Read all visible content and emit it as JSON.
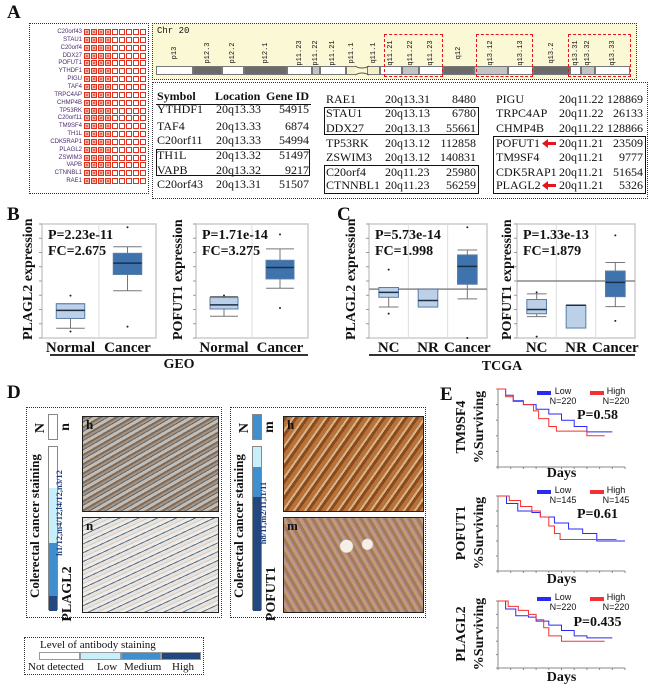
{
  "panel_labels": {
    "A": "A",
    "B": "B",
    "C": "C",
    "D": "D",
    "E": "E"
  },
  "heatmap": {
    "genes": [
      "C20orf43",
      "STAU1",
      "C20orf4",
      "DDX27",
      "POFUT1",
      "YTHDF1",
      "PIGU",
      "TAF4",
      "TRPC4AP",
      "CHMP4B",
      "TP53RK",
      "C20orf11",
      "TM9SF4",
      "TH1L",
      "CDK5RAP1",
      "PLAGL2",
      "ZSWIM3",
      "VAPB",
      "CTNNBL1",
      "RAE1"
    ],
    "columns": 9,
    "filled_columns": 4,
    "color": "#e0301e"
  },
  "chromosome": {
    "title": "Chr 20",
    "bands": [
      {
        "name": "p13",
        "stain": "white"
      },
      {
        "name": "p12.3",
        "stain": "dark"
      },
      {
        "name": "p12.2",
        "stain": "white"
      },
      {
        "name": "p12.1",
        "stain": "dark"
      },
      {
        "name": "p11.23",
        "stain": "white"
      },
      {
        "name": "p11.22",
        "stain": "gray"
      },
      {
        "name": "p11.21",
        "stain": "white"
      },
      {
        "name": "p11.1",
        "stain": "pale"
      },
      {
        "name": "q11.1",
        "stain": "pale"
      },
      {
        "name": "q11.21",
        "stain": "white"
      },
      {
        "name": "q11.22",
        "stain": "gray"
      },
      {
        "name": "q11.23",
        "stain": "white"
      },
      {
        "name": "q12",
        "stain": "dark"
      },
      {
        "name": "q13.12",
        "stain": "gray"
      },
      {
        "name": "q13.13",
        "stain": "white"
      },
      {
        "name": "q13.2",
        "stain": "dark"
      },
      {
        "name": "q13.31",
        "stain": "white"
      },
      {
        "name": "q13.32",
        "stain": "gray"
      },
      {
        "name": "q13.33",
        "stain": "white"
      }
    ],
    "highlighted_regions": [
      [
        "q11.21",
        "q11.23"
      ],
      [
        "q13.12",
        "q13.13"
      ],
      [
        "q13.31",
        "q13.33"
      ]
    ],
    "highlight_color": "#e8141c"
  },
  "gene_table": {
    "headers": [
      "Symbol",
      "Location",
      "Gene ID"
    ],
    "columns": [
      [
        [
          "YTHDF1",
          "20q13.33",
          "54915"
        ],
        [
          "TAF4",
          "20q13.33",
          "6874"
        ],
        [
          "C20orf11",
          "20q13.33",
          "54994"
        ],
        [
          "TH1L",
          "20q13.32",
          "51497"
        ],
        [
          "VAPB",
          "20q13.32",
          "9217"
        ],
        [
          "C20orf43",
          "20q13.31",
          "51507"
        ]
      ],
      [
        [
          "RAE1",
          "20q13.31",
          "8480"
        ],
        [
          "STAU1",
          "20q13.13",
          "6780"
        ],
        [
          "DDX27",
          "20q13.13",
          "55661"
        ],
        [
          "TP53RK",
          "20q13.12",
          "112858"
        ],
        [
          "ZSWIM3",
          "20q13.12",
          "140831"
        ],
        [
          "C20orf4",
          "20q11.23",
          "25980"
        ],
        [
          "CTNNBL1",
          "20q11.23",
          "56259"
        ]
      ],
      [
        [
          "PIGU",
          "20q11.22",
          "128869"
        ],
        [
          "TRPC4AP",
          "20q11.22",
          "26133"
        ],
        [
          "CHMP4B",
          "20q11.22",
          "128866"
        ],
        [
          "POFUT1",
          "20q11.21",
          "23509"
        ],
        [
          "TM9SF4",
          "20q11.21",
          "9777"
        ],
        [
          "CDK5RAP1",
          "20q11.21",
          "51654"
        ],
        [
          "PLAGL2",
          "20q11.21",
          "5326"
        ]
      ]
    ],
    "arrow_genes": [
      "POFUT1",
      "PLAGL2"
    ],
    "arrow_color": "#e8141c"
  },
  "chart_data": [
    {
      "type": "box",
      "panel": "B",
      "ylabel": "PLAGL2 expression",
      "stat": [
        "P=2.23e-11",
        "FC=2.675"
      ],
      "ylim": [
        0,
        3.5
      ],
      "groups": [
        {
          "name": "Normal",
          "whisker": [
            0.3,
            1.05
          ],
          "q1": 0.6,
          "median": 0.85,
          "q3": 1.05,
          "outliers": [
            1.3,
            0.2
          ],
          "color": "#bcd0e8"
        },
        {
          "name": "Cancer",
          "whisker": [
            1.45,
            2.8
          ],
          "q1": 1.95,
          "median": 2.3,
          "q3": 2.6,
          "outliers": [
            3.4,
            0.35
          ],
          "color": "#3f73ad"
        }
      ]
    },
    {
      "type": "box",
      "panel": "B",
      "ylabel": "POFUT1 expression",
      "stat": [
        "P=1.71e-14",
        "FC=3.275"
      ],
      "ylim": [
        0,
        5.5
      ],
      "groups": [
        {
          "name": "Normal",
          "whisker": [
            1.05,
            2.0
          ],
          "q1": 1.4,
          "median": 1.6,
          "q3": 1.95,
          "outliers": [
            2.05
          ],
          "color": "#bcd0e8"
        },
        {
          "name": "Cancer",
          "whisker": [
            2.4,
            4.3
          ],
          "q1": 2.85,
          "median": 3.4,
          "q3": 3.75,
          "outliers": [
            5.0,
            1.45
          ],
          "color": "#3f73ad"
        }
      ]
    },
    {
      "type": "box",
      "panel": "C",
      "ylabel": "PLAGL2 expression",
      "stat": [
        "P=5.73e-14",
        "FC=1.998"
      ],
      "ylim": [
        -1.5,
        2.0
      ],
      "refline": 0,
      "groups": [
        {
          "name": "NC",
          "whisker": [
            -0.55,
            0.05
          ],
          "q1": -0.25,
          "median": -0.1,
          "q3": 0.05,
          "outliers": [
            0.6,
            -0.75
          ],
          "color": "#bcd0e8"
        },
        {
          "name": "NR",
          "whisker": [
            -0.55,
            0
          ],
          "q1": -0.55,
          "median": -0.35,
          "q3": 0,
          "outliers": [],
          "color": "#bcd0e8"
        },
        {
          "name": "Cancer",
          "whisker": [
            -0.3,
            1.2
          ],
          "q1": 0.15,
          "median": 0.7,
          "q3": 1.05,
          "outliers": [
            1.9,
            -1.5
          ],
          "color": "#3f73ad"
        }
      ]
    },
    {
      "type": "box",
      "panel": "C",
      "ylabel": "POFUT1 expression",
      "stat": [
        "P=1.33e-13",
        "FC=1.879"
      ],
      "ylim": [
        -2.0,
        2.0
      ],
      "refline": 0,
      "groups": [
        {
          "name": "NC",
          "whisker": [
            -1.25,
            -0.45
          ],
          "q1": -1.15,
          "median": -1.0,
          "q3": -0.65,
          "outliers": [
            -0.4,
            -1.95
          ],
          "color": "#bcd0e8"
        },
        {
          "name": "NR",
          "whisker": [
            -1.65,
            -0.85
          ],
          "q1": -1.65,
          "median": -0.85,
          "q3": -0.85,
          "outliers": [],
          "color": "#bcd0e8"
        },
        {
          "name": "Cancer",
          "whisker": [
            -0.9,
            0.65
          ],
          "q1": -0.55,
          "median": -0.05,
          "q3": 0.35,
          "outliers": [
            1.6,
            -1.4
          ],
          "color": "#3f73ad"
        }
      ]
    },
    {
      "type": "line",
      "panel": "E",
      "ylabel": "TM9SF4",
      "ylabel2": "%Surviving",
      "xlabel": "Days",
      "stat": "P=0.58",
      "xlim": [
        0,
        5000
      ],
      "ylim": [
        0,
        100
      ],
      "series": [
        {
          "name": "Low",
          "n": "N=220",
          "color": "#2a2af5",
          "points": [
            [
              0,
              100
            ],
            [
              300,
              92
            ],
            [
              600,
              85
            ],
            [
              1000,
              80
            ],
            [
              1500,
              74
            ],
            [
              2000,
              68
            ],
            [
              2500,
              60
            ],
            [
              3000,
              52
            ],
            [
              3500,
              45
            ],
            [
              4500,
              45
            ]
          ]
        },
        {
          "name": "High",
          "n": "N=220",
          "color": "#f53030",
          "points": [
            [
              0,
              100
            ],
            [
              300,
              90
            ],
            [
              600,
              84
            ],
            [
              1000,
              80
            ],
            [
              1400,
              72
            ],
            [
              1600,
              62
            ],
            [
              2000,
              52
            ],
            [
              2300,
              46
            ],
            [
              3000,
              46
            ],
            [
              3500,
              40
            ],
            [
              4200,
              40
            ]
          ]
        }
      ]
    },
    {
      "type": "line",
      "panel": "E",
      "ylabel": "POFUT1",
      "ylabel2": "%Surviving",
      "xlabel": "Days",
      "stat": "P=0.61",
      "xlim": [
        0,
        4500
      ],
      "ylim": [
        0,
        100
      ],
      "series": [
        {
          "name": "Low",
          "n": "N=145",
          "color": "#2a2af5",
          "points": [
            [
              0,
              100
            ],
            [
              300,
              90
            ],
            [
              700,
              80
            ],
            [
              1200,
              78
            ],
            [
              1500,
              72
            ],
            [
              2000,
              64
            ],
            [
              2500,
              56
            ],
            [
              3000,
              50
            ],
            [
              3500,
              40
            ],
            [
              4500,
              40
            ]
          ]
        },
        {
          "name": "High",
          "n": "N=145",
          "color": "#f53030",
          "points": [
            [
              0,
              100
            ],
            [
              400,
              94
            ],
            [
              800,
              86
            ],
            [
              1200,
              80
            ],
            [
              1500,
              72
            ],
            [
              1800,
              60
            ],
            [
              2000,
              50
            ],
            [
              2200,
              42
            ],
            [
              4200,
              42
            ]
          ]
        }
      ]
    },
    {
      "type": "line",
      "panel": "E",
      "ylabel": "PLAGL2",
      "ylabel2": "%Surviving",
      "xlabel": "Days",
      "stat": "P=0.435",
      "xlim": [
        0,
        5000
      ],
      "ylim": [
        0,
        100
      ],
      "series": [
        {
          "name": "Low",
          "n": "N=220",
          "color": "#2a2af5",
          "points": [
            [
              0,
              100
            ],
            [
              300,
              88
            ],
            [
              700,
              78
            ],
            [
              1200,
              76
            ],
            [
              1500,
              70
            ],
            [
              2000,
              64
            ],
            [
              2500,
              56
            ],
            [
              3000,
              48
            ],
            [
              3500,
              45
            ],
            [
              4500,
              45
            ]
          ]
        },
        {
          "name": "High",
          "n": "N=220",
          "color": "#f53030",
          "points": [
            [
              0,
              100
            ],
            [
              400,
              92
            ],
            [
              800,
              86
            ],
            [
              1200,
              80
            ],
            [
              1500,
              72
            ],
            [
              1800,
              60
            ],
            [
              2000,
              48
            ],
            [
              2500,
              40
            ],
            [
              4200,
              40
            ]
          ]
        }
      ]
    }
  ],
  "panel_b": {
    "group_label": "GEO"
  },
  "panel_c": {
    "group_label": "TCGA"
  },
  "panel_d": {
    "left": {
      "normal_label": "N",
      "normal_code": "n",
      "cancer_label": "Colerectal cancer staining",
      "gene": "PLAGL2",
      "counts": "h1/12,m4/12,l4/12,n3/12",
      "image_labels": [
        "h",
        "n"
      ]
    },
    "right": {
      "normal_label": "N",
      "normal_code": "m",
      "cancer_label": "Colerectal cancer staining",
      "gene": "POFUT1",
      "counts": "h8/11,m2/11,l1/11",
      "image_labels": [
        "h",
        "m"
      ]
    }
  },
  "staining_legend": {
    "title": "Level of antibody staining",
    "levels": [
      {
        "label": "Not detected",
        "color": "#ffffff"
      },
      {
        "label": "Low",
        "color": "#c8f0fa"
      },
      {
        "label": "Medium",
        "color": "#3f8fcf"
      },
      {
        "label": "High",
        "color": "#23477f"
      }
    ]
  }
}
